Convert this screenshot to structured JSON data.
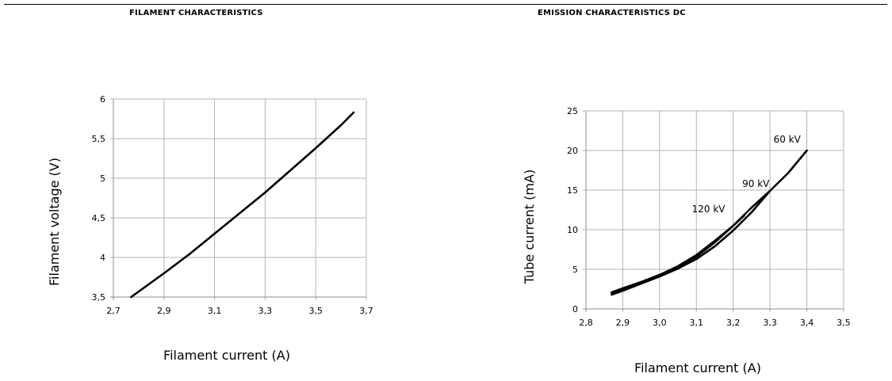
{
  "header": {
    "left_title": "FILAMENT CHARACTERISTICS",
    "right_title": "EMISSION CHARACTERISTICS DC"
  },
  "chart_data": [
    {
      "type": "line",
      "title": "FILAMENT CHARACTERISTICS",
      "xlabel": "Filament current (A)",
      "ylabel": "Filament voltage (V)",
      "xlim": [
        2.7,
        3.7
      ],
      "ylim": [
        3.5,
        6
      ],
      "x_ticks": [
        "2,7",
        "2,9",
        "3,1",
        "3,3",
        "3,5",
        "3,7"
      ],
      "y_ticks": [
        "3,5",
        "4",
        "4,5",
        "5",
        "5,5",
        "6"
      ],
      "grid": true,
      "series": [
        {
          "x": [
            2.77,
            2.9,
            3.0,
            3.1,
            3.2,
            3.3,
            3.4,
            3.5,
            3.6,
            3.65
          ],
          "values": [
            3.5,
            3.8,
            4.04,
            4.3,
            4.56,
            4.82,
            5.1,
            5.38,
            5.67,
            5.83
          ]
        }
      ]
    },
    {
      "type": "line",
      "title": "EMISSION CHARACTERISTICS DC",
      "xlabel": "Filament current (A)",
      "ylabel": "Tube current (mA)",
      "xlim": [
        2.8,
        3.5
      ],
      "ylim": [
        0,
        25
      ],
      "x_ticks": [
        "2,8",
        "2,9",
        "3,0",
        "3,1",
        "3,2",
        "3,3",
        "3,4",
        "3,5"
      ],
      "y_ticks": [
        "0",
        "5",
        "10",
        "15",
        "20",
        "25"
      ],
      "grid": true,
      "series": [
        {
          "name": "60 kV",
          "x": [
            2.87,
            2.9,
            2.95,
            3.0,
            3.05,
            3.1,
            3.15,
            3.2,
            3.25,
            3.3,
            3.35,
            3.4
          ],
          "values": [
            1.8,
            2.3,
            3.2,
            4.1,
            5.1,
            6.3,
            7.9,
            9.9,
            12.2,
            14.9,
            17.2,
            20.0
          ]
        },
        {
          "name": "90 kV",
          "x": [
            2.87,
            2.9,
            2.95,
            3.0,
            3.05,
            3.1,
            3.15,
            3.2,
            3.25,
            3.3
          ],
          "values": [
            2.0,
            2.5,
            3.3,
            4.2,
            5.3,
            6.6,
            8.4,
            10.5,
            12.8,
            14.9
          ]
        },
        {
          "name": "120 kV",
          "x": [
            2.87,
            2.9,
            2.95,
            3.0,
            3.05,
            3.1,
            3.15,
            3.2,
            3.23
          ],
          "values": [
            2.1,
            2.6,
            3.4,
            4.3,
            5.4,
            6.8,
            8.6,
            10.5,
            11.8
          ]
        }
      ]
    }
  ]
}
